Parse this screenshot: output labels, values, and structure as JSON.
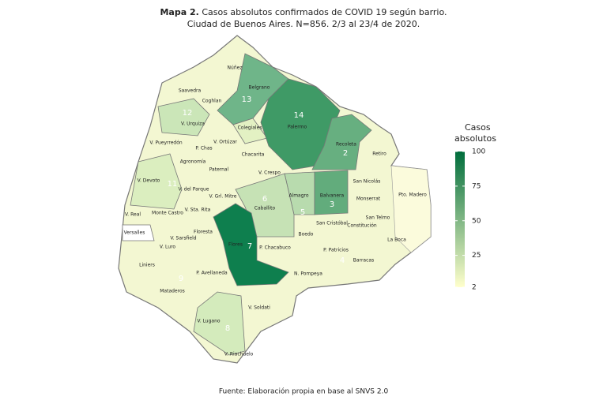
{
  "header": {
    "title_prefix": "Mapa 2.",
    "title": "Casos absolutos confirmados de COVID 19 según barrio.",
    "subtitle": "Ciudad de Buenos Aires. N=856. 2/3 al 23/4 de 2020."
  },
  "legend": {
    "title_lines": [
      "Casos",
      "absolutos"
    ],
    "range": [
      2,
      100
    ],
    "ticks": [
      2,
      25,
      50,
      75,
      100
    ],
    "colors": [
      "#ffffcc",
      "#006d3c"
    ]
  },
  "barrios": [
    {
      "name": "Núñez"
    },
    {
      "name": "Saavedra"
    },
    {
      "name": "Coghlan"
    },
    {
      "name": "Belgrano",
      "number": "13",
      "color": "#6fb589"
    },
    {
      "name": "V. Urquiza",
      "number": "12",
      "color": "#cbe6b8"
    },
    {
      "name": "Colegiales",
      "color": "#e3f1c3"
    },
    {
      "name": "Palermo",
      "number": "14",
      "color": "#3f9a66"
    },
    {
      "name": "Recoleta",
      "number": "2",
      "color": "#67af80"
    },
    {
      "name": "Retiro"
    },
    {
      "name": "V. Pueyrredón"
    },
    {
      "name": "V. Ortúzar"
    },
    {
      "name": "P. Chas"
    },
    {
      "name": "Chacarita"
    },
    {
      "name": "Agronomía"
    },
    {
      "name": "Paternal"
    },
    {
      "name": "V. Crespo"
    },
    {
      "name": "V. Devoto",
      "number": "11",
      "color": "#dbeebf"
    },
    {
      "name": "V. del Parque"
    },
    {
      "name": "V. Grl. Mitre"
    },
    {
      "name": "Almagro",
      "number": "5",
      "color": "#b8dbae"
    },
    {
      "name": "Balvanera",
      "number": "3",
      "color": "#62ac7c"
    },
    {
      "name": "Caballito",
      "number": "6",
      "color": "#c6e2b5"
    },
    {
      "name": "San Nicolás"
    },
    {
      "name": "Monserrat"
    },
    {
      "name": "Pto. Madero"
    },
    {
      "name": "V. Real"
    },
    {
      "name": "Monte Castro"
    },
    {
      "name": "V. Sta. Rita"
    },
    {
      "name": "San Telmo"
    },
    {
      "name": "Constitución"
    },
    {
      "name": "San Cristóbal"
    },
    {
      "name": "Boedo"
    },
    {
      "name": "Floresta"
    },
    {
      "name": "Versalles",
      "color": "#ffffff"
    },
    {
      "name": "V. Sarsfield"
    },
    {
      "name": "V. Luro"
    },
    {
      "name": "Flores",
      "number": "7",
      "color": "#0e7f4e"
    },
    {
      "name": "P. Chacabuco"
    },
    {
      "name": "La Boca"
    },
    {
      "name": "P. Patricios"
    },
    {
      "name": "Barracas",
      "number": "4"
    },
    {
      "name": "Liniers"
    },
    {
      "name": "P. Avellaneda"
    },
    {
      "name": "N. Pompeya"
    },
    {
      "name": "Mataderos",
      "number": "9"
    },
    {
      "name": "V. Soldati"
    },
    {
      "name": "V. Lugano",
      "number": "8",
      "color": "#d4ebbc"
    },
    {
      "name": "V. Riachuelo"
    }
  ],
  "source": "Fuente: Elaboración propia en base al SNVS 2.0"
}
